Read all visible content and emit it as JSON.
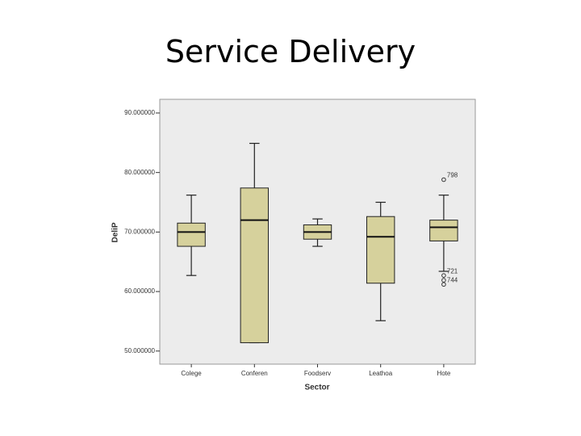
{
  "chart_data": {
    "type": "box",
    "title": "Service Delivery",
    "x_label": "Sector",
    "y_label": "DeliP",
    "categories": [
      "Colege",
      "Conferen",
      "Foodserv",
      "Leathoa",
      "Hote"
    ],
    "boxes": [
      {
        "min": 62.7,
        "q1": 67.6,
        "median": 70.0,
        "q3": 71.5,
        "max": 76.2
      },
      {
        "min": 51.4,
        "q1": 51.4,
        "median": 72.0,
        "q3": 77.4,
        "max": 84.9
      },
      {
        "min": 67.6,
        "q1": 68.8,
        "median": 70.0,
        "q3": 71.2,
        "max": 72.2
      },
      {
        "min": 55.1,
        "q1": 61.4,
        "median": 69.2,
        "q3": 72.6,
        "max": 75.0
      },
      {
        "min": 63.4,
        "q1": 68.5,
        "median": 70.8,
        "q3": 72.0,
        "max": 76.2,
        "outliers": [
          {
            "value": 78.8,
            "label": "798"
          },
          {
            "value": 62.7,
            "label": "721"
          },
          {
            "value": 61.9
          },
          {
            "value": 61.2,
            "label": "744"
          }
        ]
      }
    ],
    "color": "#d6d19c",
    "ylim": [
      47.8,
      92.3
    ],
    "yticks": [
      {
        "value": 50,
        "label": "50.000000"
      },
      {
        "value": 60,
        "label": "60.000000"
      },
      {
        "value": 70,
        "label": "70.000000"
      },
      {
        "value": 80,
        "label": "80.000000"
      },
      {
        "value": 90,
        "label": "90.000000"
      }
    ]
  }
}
